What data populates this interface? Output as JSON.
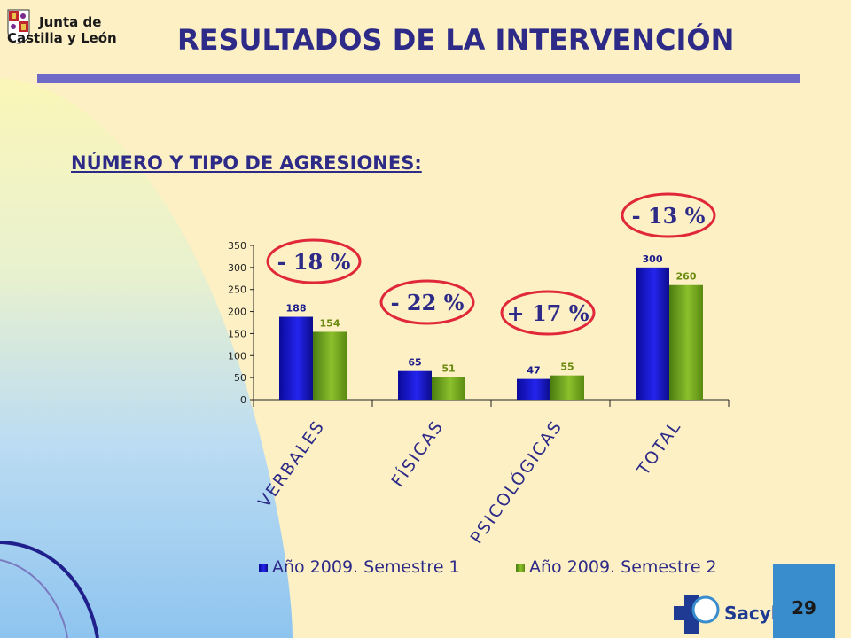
{
  "header": {
    "logo_text_line1": "Junta de",
    "logo_text_line2": "Castilla y León",
    "title": "RESULTADOS DE LA INTERVENCIÓN"
  },
  "subtitle": "NÚMERO Y TIPO DE AGRESIONES:",
  "chart_data": {
    "type": "bar",
    "categories": [
      "VERBALES",
      "FÍSICAS",
      "PSICOLÓGICAS",
      "TOTAL"
    ],
    "series": [
      {
        "name": "Año 2009. Semestre 1",
        "values": [
          188,
          65,
          47,
          300
        ],
        "color": "#1a1ad6"
      },
      {
        "name": "Año 2009. Semestre 2",
        "values": [
          154,
          51,
          55,
          260
        ],
        "color": "#6aa31a"
      }
    ],
    "ylim": [
      0,
      350
    ],
    "yticks": [
      0,
      50,
      100,
      150,
      200,
      250,
      300,
      350
    ],
    "legend_position": "bottom",
    "annotations": [
      "- 18 %",
      "- 22 %",
      "+ 17 %",
      "- 13 %"
    ],
    "label_colors": {
      "series1": "#1a1a8a",
      "series2": "#6a8a10",
      "annotation_circle": "#e0283a"
    }
  },
  "footer": {
    "page_number": "29",
    "brand": "Sacyl"
  },
  "colors": {
    "background": "#fcf0c4",
    "title": "#2d2a88",
    "title_bar": "#6f6ac8",
    "page_box": "#3a8dcd"
  }
}
